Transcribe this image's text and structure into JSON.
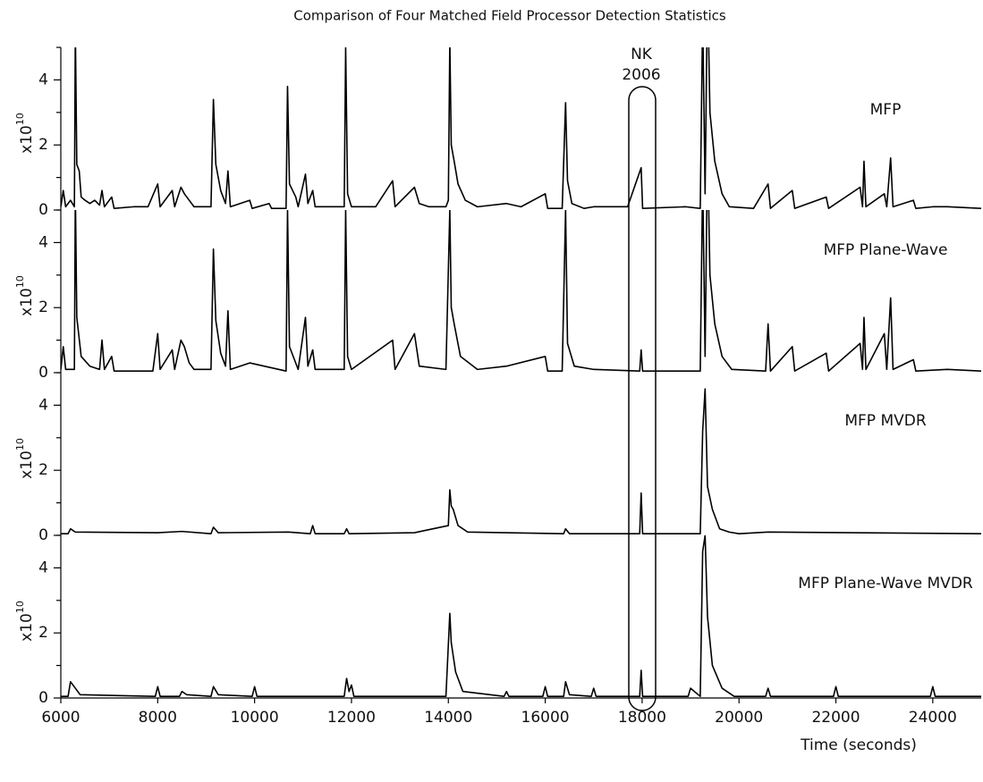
{
  "chart_data": [
    {
      "type": "line",
      "title": "Comparison of Four Matched Field Processor Detection Statistics",
      "label": "MFP",
      "ylabel": "x10",
      "ylabel_exp": "10",
      "annotation": [
        "NK",
        "2006"
      ],
      "color": "#000000",
      "xlim": [
        6000,
        25000
      ],
      "ylim": [
        0,
        5
      ],
      "yticks": [
        0,
        2,
        4
      ],
      "yminor": [
        1,
        3,
        5
      ],
      "x": [
        6000,
        6050,
        6100,
        6200,
        6280,
        6300,
        6330,
        6380,
        6420,
        6500,
        6600,
        6700,
        6800,
        6850,
        6900,
        7050,
        7100,
        7500,
        7800,
        8000,
        8050,
        8300,
        8350,
        8480,
        8550,
        8650,
        8750,
        9100,
        9150,
        9200,
        9300,
        9400,
        9450,
        9500,
        9900,
        9950,
        10300,
        10350,
        10650,
        10680,
        10720,
        10850,
        10900,
        11050,
        11100,
        11200,
        11250,
        11500,
        11850,
        11880,
        11920,
        12000,
        12500,
        12850,
        12900,
        13300,
        13400,
        13600,
        13950,
        14000,
        14030,
        14060,
        14120,
        14200,
        14350,
        14600,
        15200,
        15500,
        16000,
        16050,
        16350,
        16420,
        16460,
        16550,
        16800,
        17000,
        17700,
        17980,
        18010,
        18900,
        19200,
        19250,
        19300,
        19350,
        19400,
        19500,
        19650,
        19800,
        20300,
        20600,
        20650,
        21100,
        21150,
        21800,
        21850,
        22500,
        22550,
        22580,
        22620,
        23000,
        23050,
        23130,
        23180,
        23600,
        23650,
        24000,
        24300,
        25000
      ],
      "values": [
        0.1,
        0.6,
        0.1,
        0.3,
        0.1,
        5.5,
        1.4,
        1.2,
        0.4,
        0.3,
        0.2,
        0.3,
        0.15,
        0.6,
        0.1,
        0.4,
        0.05,
        0.1,
        0.1,
        0.8,
        0.1,
        0.6,
        0.1,
        0.7,
        0.5,
        0.3,
        0.1,
        0.1,
        3.4,
        1.4,
        0.6,
        0.2,
        1.2,
        0.1,
        0.3,
        0.05,
        0.2,
        0.05,
        0.05,
        3.8,
        0.8,
        0.4,
        0.1,
        1.1,
        0.2,
        0.6,
        0.1,
        0.1,
        0.1,
        5.0,
        0.5,
        0.1,
        0.1,
        0.9,
        0.1,
        0.7,
        0.2,
        0.1,
        0.1,
        0.3,
        5.2,
        2.0,
        1.5,
        0.8,
        0.3,
        0.1,
        0.2,
        0.1,
        0.5,
        0.05,
        0.05,
        3.3,
        0.9,
        0.2,
        0.05,
        0.1,
        0.1,
        1.3,
        0.05,
        0.1,
        0.05,
        6.0,
        0.5,
        7.0,
        3.0,
        1.5,
        0.5,
        0.1,
        0.05,
        0.8,
        0.05,
        0.6,
        0.05,
        0.4,
        0.05,
        0.7,
        0.1,
        1.5,
        0.1,
        0.5,
        0.1,
        1.6,
        0.1,
        0.3,
        0.05,
        0.1,
        0.1,
        0.05
      ]
    },
    {
      "type": "line",
      "label": "MFP Plane-Wave",
      "ylabel": "x10",
      "ylabel_exp": "10",
      "color": "#000000",
      "xlim": [
        6000,
        25000
      ],
      "ylim": [
        0,
        5
      ],
      "yticks": [
        0,
        2,
        4
      ],
      "yminor": [
        1,
        3,
        5
      ],
      "x": [
        6000,
        6050,
        6100,
        6280,
        6300,
        6330,
        6420,
        6600,
        6800,
        6850,
        6900,
        7050,
        7100,
        7900,
        8000,
        8050,
        8300,
        8350,
        8480,
        8550,
        8650,
        8750,
        9100,
        9150,
        9200,
        9300,
        9400,
        9450,
        9500,
        9900,
        10650,
        10680,
        10720,
        10900,
        11050,
        11100,
        11200,
        11250,
        11850,
        11880,
        11920,
        12000,
        12850,
        12900,
        13300,
        13400,
        13950,
        14030,
        14060,
        14120,
        14250,
        14600,
        15200,
        16000,
        16050,
        16350,
        16420,
        16460,
        16600,
        17000,
        17950,
        17980,
        18010,
        19200,
        19250,
        19300,
        19350,
        19400,
        19500,
        19650,
        19850,
        20550,
        20600,
        20650,
        21100,
        21150,
        21800,
        21850,
        22500,
        22550,
        22580,
        22620,
        23000,
        23050,
        23130,
        23180,
        23600,
        23650,
        24300,
        25000
      ],
      "values": [
        0.1,
        0.8,
        0.1,
        0.1,
        5.5,
        1.7,
        0.5,
        0.2,
        0.1,
        1.0,
        0.1,
        0.5,
        0.05,
        0.05,
        1.2,
        0.1,
        0.7,
        0.1,
        1.0,
        0.8,
        0.3,
        0.1,
        0.1,
        3.8,
        1.6,
        0.6,
        0.2,
        1.9,
        0.1,
        0.3,
        0.05,
        5.0,
        0.8,
        0.1,
        1.7,
        0.2,
        0.7,
        0.1,
        0.1,
        5.0,
        0.5,
        0.1,
        1.0,
        0.1,
        1.2,
        0.2,
        0.1,
        5.0,
        2.0,
        1.5,
        0.5,
        0.1,
        0.2,
        0.5,
        0.05,
        0.05,
        5.0,
        0.9,
        0.2,
        0.1,
        0.05,
        0.7,
        0.05,
        0.05,
        6.0,
        0.5,
        7.0,
        3.0,
        1.5,
        0.5,
        0.1,
        0.05,
        1.5,
        0.05,
        0.8,
        0.05,
        0.6,
        0.05,
        0.9,
        0.1,
        1.7,
        0.1,
        1.2,
        0.1,
        2.3,
        0.1,
        0.4,
        0.05,
        0.1,
        0.05
      ]
    },
    {
      "type": "line",
      "label": "MFP MVDR",
      "ylabel": "x10",
      "ylabel_exp": "10",
      "color": "#000000",
      "xlim": [
        6000,
        25000
      ],
      "ylim": [
        0,
        5
      ],
      "yticks": [
        0,
        2,
        4
      ],
      "yminor": [
        1,
        3,
        5
      ],
      "x": [
        6000,
        6150,
        6200,
        6300,
        8000,
        8500,
        9100,
        9150,
        9250,
        10700,
        11150,
        11200,
        11250,
        11850,
        11900,
        11950,
        13300,
        14000,
        14030,
        14060,
        14100,
        14200,
        14400,
        16380,
        16420,
        16500,
        17950,
        17980,
        18010,
        19200,
        19250,
        19300,
        19350,
        19450,
        19600,
        19800,
        20000,
        20600,
        25000
      ],
      "values": [
        0.05,
        0.05,
        0.2,
        0.1,
        0.08,
        0.12,
        0.05,
        0.25,
        0.08,
        0.1,
        0.05,
        0.3,
        0.05,
        0.05,
        0.2,
        0.05,
        0.08,
        0.3,
        1.4,
        0.9,
        0.8,
        0.3,
        0.1,
        0.05,
        0.2,
        0.05,
        0.05,
        1.3,
        0.05,
        0.05,
        3.2,
        4.5,
        1.5,
        0.8,
        0.2,
        0.1,
        0.05,
        0.1,
        0.05
      ]
    },
    {
      "type": "line",
      "label": "MFP Plane-Wave MVDR",
      "ylabel": "x10",
      "ylabel_exp": "10",
      "color": "#000000",
      "xlabel": "Time (seconds)",
      "xlim": [
        6000,
        25000
      ],
      "ylim": [
        0,
        5
      ],
      "yticks": [
        0,
        2,
        4
      ],
      "yminor": [
        1,
        3,
        5
      ],
      "xticks": [
        6000,
        8000,
        10000,
        12000,
        14000,
        16000,
        18000,
        20000,
        22000,
        24000
      ],
      "x": [
        6000,
        6150,
        6200,
        6300,
        6400,
        7950,
        8000,
        8050,
        8450,
        8500,
        8600,
        9100,
        9150,
        9250,
        9950,
        10000,
        10050,
        11850,
        11900,
        11950,
        12000,
        12050,
        13950,
        14030,
        14060,
        14150,
        14300,
        15150,
        15200,
        15250,
        15950,
        16000,
        16050,
        16380,
        16420,
        16500,
        16950,
        17000,
        17050,
        17950,
        17980,
        18010,
        18950,
        19000,
        19200,
        19250,
        19300,
        19350,
        19450,
        19650,
        19900,
        20550,
        20600,
        20650,
        21950,
        22000,
        22050,
        23950,
        24000,
        24050,
        25000
      ],
      "values": [
        0.05,
        0.05,
        0.5,
        0.3,
        0.1,
        0.05,
        0.35,
        0.05,
        0.05,
        0.2,
        0.1,
        0.05,
        0.35,
        0.1,
        0.05,
        0.35,
        0.05,
        0.05,
        0.6,
        0.2,
        0.4,
        0.05,
        0.05,
        2.6,
        1.7,
        0.8,
        0.2,
        0.05,
        0.2,
        0.05,
        0.05,
        0.35,
        0.05,
        0.05,
        0.5,
        0.1,
        0.05,
        0.3,
        0.05,
        0.05,
        0.85,
        0.05,
        0.05,
        0.3,
        0.05,
        4.5,
        5.0,
        2.5,
        1.0,
        0.3,
        0.05,
        0.05,
        0.3,
        0.05,
        0.05,
        0.35,
        0.05,
        0.05,
        0.35,
        0.05,
        0.05
      ]
    }
  ]
}
